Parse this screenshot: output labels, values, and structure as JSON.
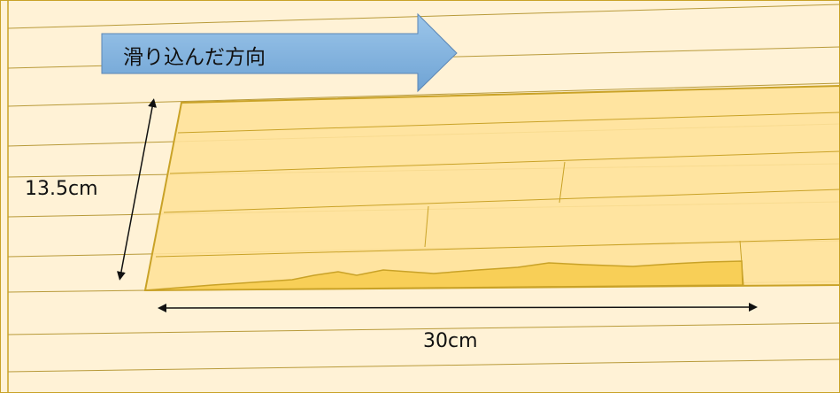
{
  "arrow_label": "滑り込んだ方向",
  "height_label": "13.5cm",
  "width_label": "30cm",
  "colors": {
    "background": "#fff2d6",
    "border": "#c9a227",
    "floor_line": "#b89a3a",
    "board": "#ffe29a",
    "board_edge": "#c9a227",
    "gap_fill": "#f8cf57",
    "arrow_fill": "#7fb2de",
    "arrow_stroke": "#5b86b5"
  }
}
